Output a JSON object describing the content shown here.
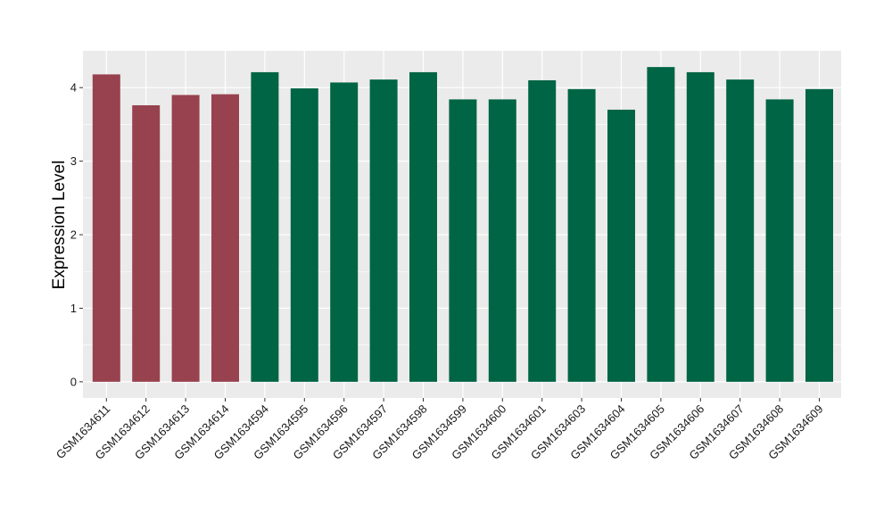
{
  "chart_data": {
    "type": "bar",
    "categories": [
      "GSM1634611",
      "GSM1634612",
      "GSM1634613",
      "GSM1634614",
      "GSM1634594",
      "GSM1634595",
      "GSM1634596",
      "GSM1634597",
      "GSM1634598",
      "GSM1634599",
      "GSM1634600",
      "GSM1634601",
      "GSM1634603",
      "GSM1634604",
      "GSM1634605",
      "GSM1634606",
      "GSM1634607",
      "GSM1634608",
      "GSM1634609"
    ],
    "values": [
      4.18,
      3.76,
      3.9,
      3.91,
      4.21,
      3.99,
      4.07,
      4.11,
      4.21,
      3.84,
      3.84,
      4.1,
      3.98,
      3.7,
      4.28,
      4.21,
      4.11,
      3.84,
      3.98
    ],
    "bar_colors": [
      "#98424f",
      "#98424f",
      "#98424f",
      "#98424f",
      "#006544",
      "#006544",
      "#006544",
      "#006544",
      "#006544",
      "#006544",
      "#006544",
      "#006544",
      "#006544",
      "#006544",
      "#006544",
      "#006544",
      "#006544",
      "#006544",
      "#006544"
    ],
    "title": "",
    "xlabel": "",
    "ylabel": "Expression Level",
    "ylim": [
      -0.22,
      4.5
    ],
    "yticks": [
      0,
      1,
      2,
      3,
      4
    ],
    "grid": true,
    "panel_background": "#ebebeb",
    "legend": "none"
  }
}
